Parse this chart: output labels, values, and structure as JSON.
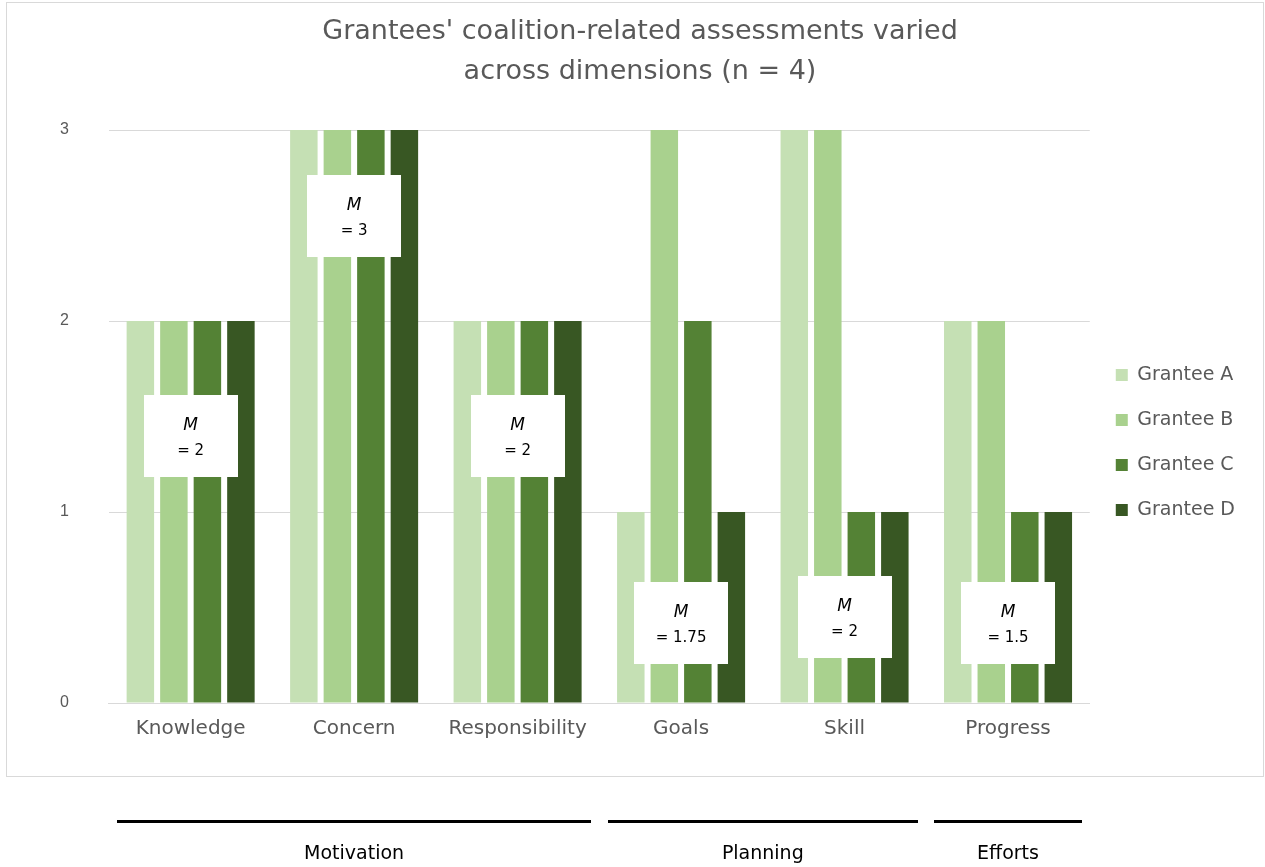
{
  "chart_data": {
    "type": "bar",
    "title": "Grantees' coalition-related assessments varied across dimensions (n = 4)",
    "categories": [
      "Knowledge",
      "Concern",
      "Responsibility",
      "Goals",
      "Skill",
      "Progress"
    ],
    "series": [
      {
        "name": "Grantee A",
        "color": "#c5e0b4",
        "values": [
          2,
          3,
          2,
          1,
          3,
          2
        ]
      },
      {
        "name": "Grantee B",
        "color": "#a9d18e",
        "values": [
          2,
          3,
          2,
          3,
          3,
          2
        ]
      },
      {
        "name": "Grantee C",
        "color": "#548235",
        "values": [
          2,
          3,
          2,
          2,
          1,
          1
        ]
      },
      {
        "name": "Grantee D",
        "color": "#385723",
        "values": [
          2,
          3,
          2,
          1,
          1,
          1
        ]
      }
    ],
    "ylim": [
      0,
      3
    ],
    "yticks": [
      0,
      1,
      2,
      3
    ],
    "grid": "y",
    "legend": "right",
    "annotations": [
      {
        "text": "M = 2",
        "x": "Knowledge",
        "y": 1.4
      },
      {
        "text": "M = 3",
        "x": "Concern",
        "y": 2.55
      },
      {
        "text": "M = 2",
        "x": "Responsibility",
        "y": 1.4
      },
      {
        "text": "M = 1.75",
        "x": "Goals",
        "y": 0.42
      },
      {
        "text": "M = 2",
        "x": "Skill",
        "y": 0.45
      },
      {
        "text": "M = 1.5",
        "x": "Progress",
        "y": 0.42
      },
      "Motivation",
      "Planning",
      "Efforts"
    ]
  }
}
